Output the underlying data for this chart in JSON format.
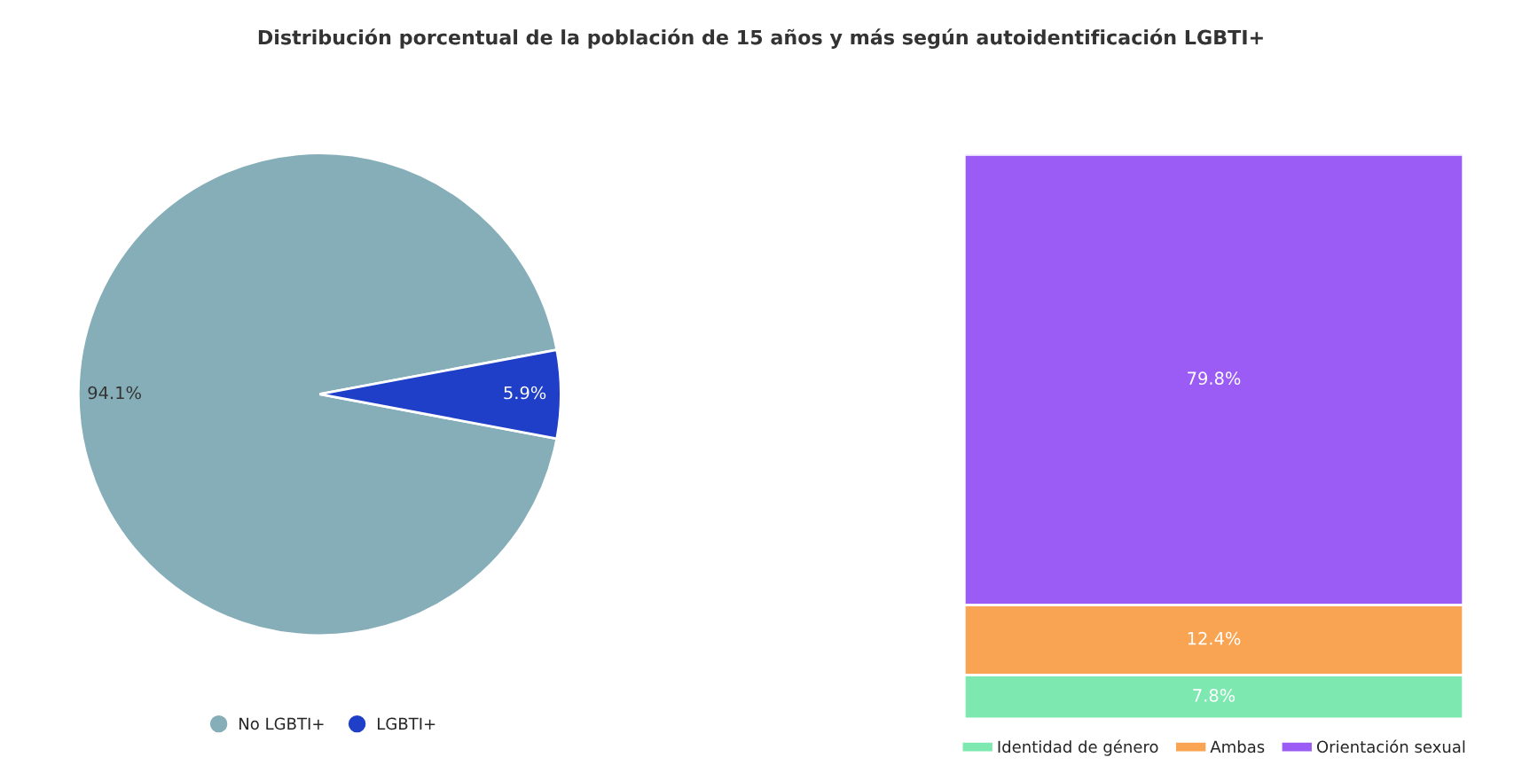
{
  "chart_data": [
    {
      "type": "pie",
      "title": "Distribución porcentual de la población de 15 años y más según autoidentificación LGBTI+",
      "categories": [
        "No LGBTI+",
        "LGBTI+"
      ],
      "values": [
        94.1,
        5.9
      ],
      "colors": [
        "#86aeb8",
        "#1f3fc8"
      ],
      "value_labels": [
        "94.1%",
        "5.9%"
      ],
      "legend": "bottom"
    },
    {
      "type": "bar",
      "stacked": true,
      "categories": [
        null
      ],
      "legend": "bottom",
      "series": [
        {
          "name": "Identidad de género",
          "color": "#7de8b0",
          "values": [
            7.8
          ],
          "value_labels": [
            "7.8%"
          ]
        },
        {
          "name": "Ambas",
          "color": "#f9a452",
          "values": [
            12.4
          ],
          "value_labels": [
            "12.4%"
          ]
        },
        {
          "name": "Orientación sexual",
          "color": "#9b5cf6",
          "values": [
            79.8
          ],
          "value_labels": [
            "79.8%"
          ]
        }
      ]
    }
  ]
}
